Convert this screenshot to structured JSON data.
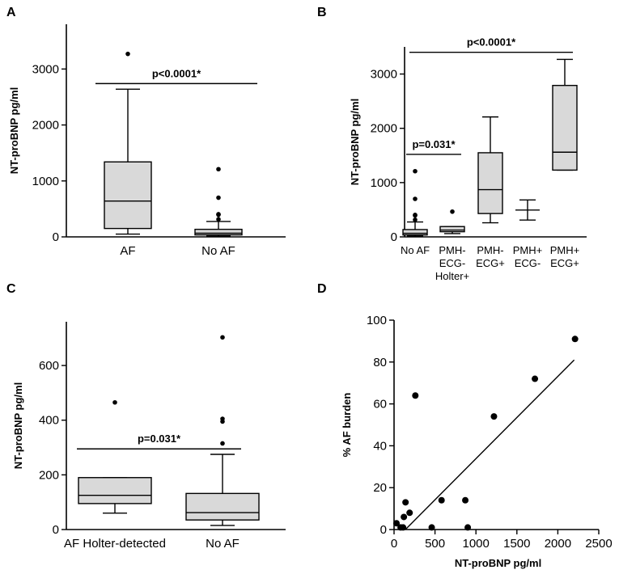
{
  "figure_colors": {
    "box_fill": "#d9d9d9",
    "stroke": "#000000"
  },
  "chart_data": [
    {
      "panel": "A",
      "type": "box",
      "ylabel": "NT-proBNP pg/ml",
      "ylim": [
        0,
        3800
      ],
      "yticks": [
        0,
        1000,
        2000,
        3000
      ],
      "categories": [
        "AF",
        "No AF"
      ],
      "boxes": [
        {
          "whisker_low": 50,
          "q1": 150,
          "median": 640,
          "q3": 1340,
          "whisker_high": 2640,
          "outliers": [
            3270
          ]
        },
        {
          "whisker_low": 15,
          "q1": 35,
          "median": 65,
          "q3": 135,
          "whisker_high": 275,
          "outliers": [
            315,
            395,
            405,
            700,
            1210
          ]
        }
      ],
      "annotation": {
        "text": "p<0.0001*",
        "y": 2740,
        "from": "AF",
        "to": "No AF"
      }
    },
    {
      "panel": "B",
      "type": "box",
      "ylabel": "NT-proBNP pg/ml",
      "ylim": [
        0,
        3500
      ],
      "yticks": [
        0,
        1000,
        2000,
        3000
      ],
      "categories": [
        [
          "No AF"
        ],
        [
          "PMH-",
          "ECG-",
          "Holter+"
        ],
        [
          "PMH-",
          "ECG+"
        ],
        [
          "PMH+",
          "ECG-"
        ],
        [
          "PMH+",
          "ECG+"
        ]
      ],
      "boxes": [
        {
          "whisker_low": 15,
          "q1": 35,
          "median": 65,
          "q3": 135,
          "whisker_high": 275,
          "outliers": [
            315,
            395,
            405,
            700,
            1210
          ]
        },
        {
          "whisker_low": 60,
          "q1": 95,
          "median": 125,
          "q3": 190,
          "whisker_high": 190,
          "outliers": [
            465
          ]
        },
        {
          "whisker_low": 260,
          "q1": 430,
          "median": 870,
          "q3": 1550,
          "whisker_high": 2210,
          "outliers": []
        },
        {
          "whisker_low": 310,
          "q1": 495,
          "median": 495,
          "q3": 495,
          "whisker_high": 680,
          "outliers": []
        },
        {
          "whisker_low": 1230,
          "q1": 1230,
          "median": 1560,
          "q3": 2790,
          "whisker_high": 3270,
          "outliers": []
        }
      ],
      "annotations": [
        {
          "text": "p<0.0001*",
          "y": 3400,
          "from": 0,
          "to": 4
        },
        {
          "text": "p=0.031*",
          "y": 1520,
          "from": 0,
          "to": 1
        }
      ]
    },
    {
      "panel": "C",
      "type": "box",
      "ylabel": "NT-proBNP pg/ml",
      "ylim": [
        0,
        760
      ],
      "yticks": [
        0,
        200,
        400,
        600
      ],
      "categories": [
        "AF Holter-detected",
        "No AF"
      ],
      "boxes": [
        {
          "whisker_low": 60,
          "q1": 95,
          "median": 125,
          "q3": 190,
          "whisker_high": 190,
          "outliers": [
            465
          ]
        },
        {
          "whisker_low": 15,
          "q1": 35,
          "median": 62,
          "q3": 132,
          "whisker_high": 275,
          "outliers": [
            315,
            395,
            405,
            703
          ]
        }
      ],
      "annotation": {
        "text": "p=0.031*",
        "y": 295,
        "from": 0,
        "to": 1
      }
    },
    {
      "panel": "D",
      "type": "scatter",
      "xlabel": "NT-proBNP pg/ml",
      "ylabel": "% AF burden",
      "xlim": [
        0,
        2500
      ],
      "ylim": [
        0,
        100
      ],
      "xticks": [
        0,
        500,
        1000,
        1500,
        2000,
        2500
      ],
      "yticks": [
        0,
        20,
        40,
        60,
        80,
        100
      ],
      "points": [
        {
          "x": 30,
          "y": 3
        },
        {
          "x": 80,
          "y": 1
        },
        {
          "x": 110,
          "y": 1
        },
        {
          "x": 120,
          "y": 6
        },
        {
          "x": 140,
          "y": 13
        },
        {
          "x": 190,
          "y": 8
        },
        {
          "x": 260,
          "y": 64
        },
        {
          "x": 460,
          "y": 1
        },
        {
          "x": 580,
          "y": 14
        },
        {
          "x": 870,
          "y": 14
        },
        {
          "x": 900,
          "y": 1
        },
        {
          "x": 1220,
          "y": 54
        },
        {
          "x": 1720,
          "y": 72
        },
        {
          "x": 2210,
          "y": 91
        }
      ],
      "regression": {
        "x": [
          0,
          2200
        ],
        "y": [
          -3,
          81
        ]
      }
    }
  ]
}
